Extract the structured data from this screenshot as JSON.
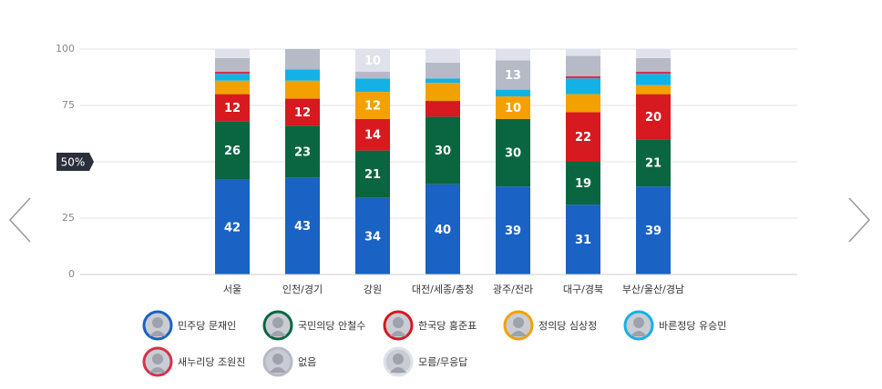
{
  "chart_data": {
    "type": "stacked_bar",
    "categories": [
      "서울",
      "인천/경기",
      "강원",
      "대전/세종/충청",
      "광주/전라",
      "대구/경북",
      "부산/울산/경남"
    ],
    "series": [
      {
        "name": "민주당 문재인",
        "color": "#1a62c4",
        "values": [
          42,
          43,
          34,
          40,
          39,
          31,
          39
        ]
      },
      {
        "name": "국민의당 안철수",
        "color": "#0a6640",
        "values": [
          26,
          23,
          21,
          30,
          30,
          19,
          21
        ]
      },
      {
        "name": "한국당 홍준표",
        "color": "#d71920",
        "values": [
          12,
          12,
          14,
          7,
          0,
          22,
          20
        ]
      },
      {
        "name": "정의당 심상정",
        "color": "#f2a100",
        "values": [
          6,
          8,
          12,
          8,
          10,
          8,
          4
        ]
      },
      {
        "name": "바른정당 유승민",
        "color": "#14b1e7",
        "values": [
          3,
          5,
          6,
          2,
          3,
          7,
          5
        ]
      },
      {
        "name": "새누리당 조원진",
        "color": "#d2334c",
        "values": [
          1,
          0,
          0,
          0,
          0,
          1,
          1
        ]
      },
      {
        "name": "없음",
        "color": "#b5bac6",
        "values": [
          6,
          9,
          3,
          7,
          13,
          9,
          6
        ]
      },
      {
        "name": "모름/무응답",
        "color": "#dfe2ea",
        "values": [
          4,
          0,
          10,
          6,
          5,
          3,
          4
        ]
      }
    ],
    "ylim": [
      0,
      100
    ],
    "yticks": [
      0,
      25,
      50,
      75,
      100
    ],
    "grid": true,
    "reference_marker": {
      "value": 50,
      "label": "50%"
    }
  }
}
